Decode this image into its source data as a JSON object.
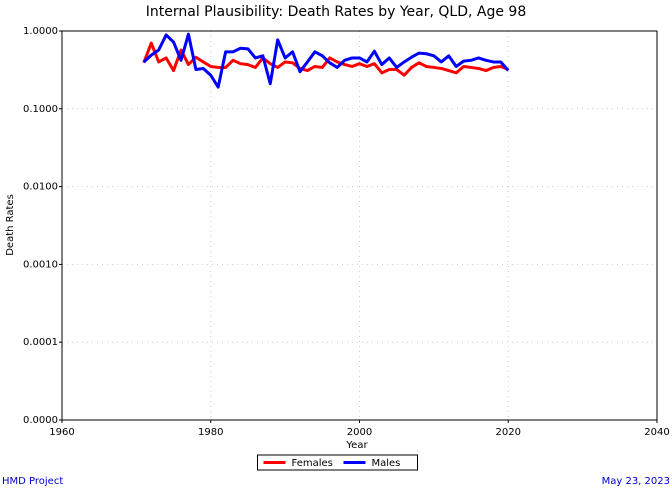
{
  "chart_data": {
    "type": "line",
    "title": "Internal Plausibility: Death Rates by Year, QLD, Age 98",
    "x_label": "Year",
    "y_label": "Death Rates",
    "x": [
      1971,
      1972,
      1973,
      1974,
      1975,
      1976,
      1977,
      1978,
      1979,
      1980,
      1981,
      1982,
      1983,
      1984,
      1985,
      1986,
      1987,
      1988,
      1989,
      1990,
      1991,
      1992,
      1993,
      1994,
      1995,
      1996,
      1997,
      1998,
      1999,
      2000,
      2001,
      2002,
      2003,
      2004,
      2005,
      2006,
      2007,
      2008,
      2009,
      2010,
      2011,
      2012,
      2013,
      2014,
      2015,
      2016,
      2017,
      2018,
      2019,
      2020
    ],
    "series": [
      {
        "name": "Females",
        "color": "#ff0000",
        "values": [
          0.39,
          0.7,
          0.4,
          0.45,
          0.31,
          0.57,
          0.37,
          0.46,
          0.4,
          0.35,
          0.34,
          0.34,
          0.42,
          0.38,
          0.37,
          0.34,
          0.45,
          0.38,
          0.34,
          0.4,
          0.39,
          0.33,
          0.31,
          0.35,
          0.34,
          0.45,
          0.4,
          0.37,
          0.35,
          0.38,
          0.35,
          0.38,
          0.29,
          0.32,
          0.32,
          0.27,
          0.34,
          0.39,
          0.35,
          0.34,
          0.33,
          0.31,
          0.29,
          0.35,
          0.34,
          0.33,
          0.31,
          0.34,
          0.35,
          0.32
        ]
      },
      {
        "name": "Males",
        "color": "#0000ff",
        "values": [
          0.4,
          0.49,
          0.57,
          0.89,
          0.72,
          0.42,
          0.91,
          0.32,
          0.33,
          0.27,
          0.19,
          0.54,
          0.54,
          0.6,
          0.59,
          0.45,
          0.48,
          0.21,
          0.77,
          0.45,
          0.54,
          0.3,
          0.4,
          0.54,
          0.48,
          0.39,
          0.34,
          0.42,
          0.45,
          0.45,
          0.4,
          0.55,
          0.37,
          0.45,
          0.34,
          0.4,
          0.46,
          0.52,
          0.51,
          0.48,
          0.4,
          0.48,
          0.35,
          0.41,
          0.42,
          0.45,
          0.42,
          0.4,
          0.4,
          0.31
        ]
      }
    ],
    "xlim": [
      1960,
      2040
    ],
    "xticks": [
      1960,
      1980,
      2000,
      2020,
      2040
    ],
    "ylim": [
      1e-05,
      1
    ],
    "yscale": "log",
    "yticks": [
      {
        "value": 1e-05,
        "label": "0.0000"
      },
      {
        "value": 0.0001,
        "label": "0.0001"
      },
      {
        "value": 0.001,
        "label": "0.0010"
      },
      {
        "value": 0.01,
        "label": "0.0100"
      },
      {
        "value": 0.1,
        "label": "0.1000"
      },
      {
        "value": 1,
        "label": "1.0000"
      }
    ],
    "grid": true,
    "legend": "bottom"
  },
  "footer": {
    "left": "HMD Project",
    "right": "May 23, 2023"
  }
}
